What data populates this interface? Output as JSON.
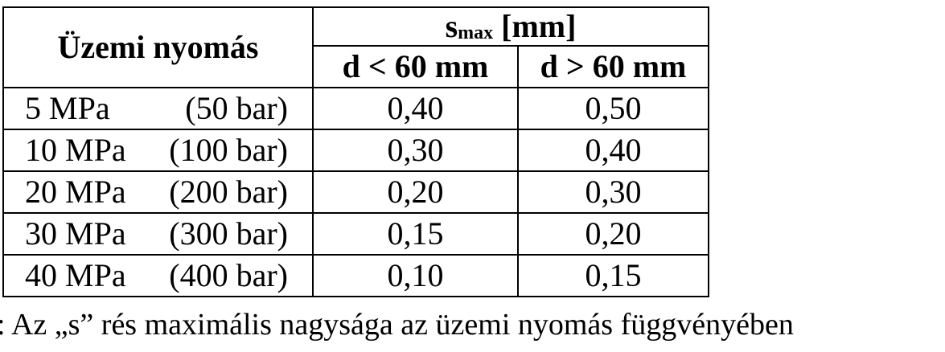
{
  "table": {
    "header": {
      "col1": "Üzemi nyomás",
      "col23_main": "s",
      "col23_sub": "max",
      "col23_unit": "[mm]",
      "col2": "d < 60 mm",
      "col3": "d > 60 mm"
    },
    "rows": [
      [
        "5 MPa",
        "(50 bar)",
        "0,40",
        "0,50"
      ],
      [
        "10 MPa",
        "(100 bar)",
        "0,30",
        "0,40"
      ],
      [
        "20 MPa",
        "(200 bar)",
        "0,20",
        "0,30"
      ],
      [
        "30 MPa",
        "(300 bar)",
        "0,15",
        "0,20"
      ],
      [
        "40 MPa",
        "(400 bar)",
        "0,10",
        "0,15"
      ]
    ]
  },
  "caption": ": Az „s” rés maximális nagysága az üzemi nyomás függvényében"
}
